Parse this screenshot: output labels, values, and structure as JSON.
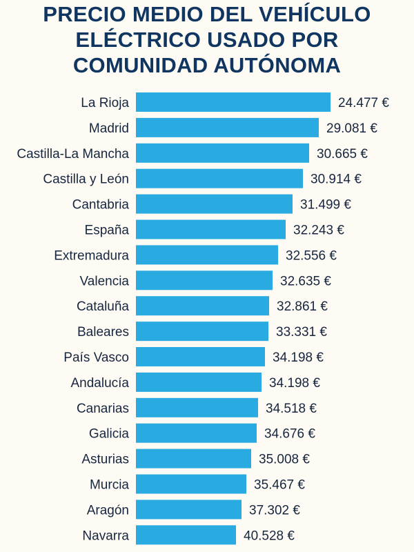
{
  "chart_data": {
    "type": "bar",
    "orientation": "horizontal",
    "title_lines": [
      "PRECIO MEDIO DEL VEHÍCULO",
      "ELÉCTRICO USADO POR",
      "COMUNIDAD AUTÓNOMA"
    ],
    "categories": [
      "La Rioja",
      "Madrid",
      "Castilla-La Mancha",
      "Castilla y León",
      "Cantabria",
      "España",
      "Extremadura",
      "Valencia",
      "Cataluña",
      "Baleares",
      "País Vasco",
      "Andalucía",
      "Canarias",
      "Galicia",
      "Asturias",
      "Murcia",
      "Aragón",
      "Navarra"
    ],
    "values": [
      24477,
      29081,
      30665,
      30914,
      31499,
      32243,
      32556,
      32635,
      32861,
      33331,
      34198,
      34198,
      34518,
      34676,
      35008,
      35467,
      37302,
      40528
    ],
    "value_labels": [
      "24.477 €",
      "29.081 €",
      "30.665 €",
      "30.914 €",
      "31.499 €",
      "32.243 €",
      "32.556 €",
      "32.635 €",
      "32.861 €",
      "33.331 €",
      "34.198 €",
      "34.198 €",
      "34.518 €",
      "34.676 €",
      "35.008 €",
      "35.467 €",
      "37.302 €",
      "40.528 €"
    ],
    "unit": "€",
    "grid": false,
    "legend": "none",
    "bar_color": "#29abe2",
    "title_color": "#0f3560",
    "background": "#fdfbf4"
  }
}
